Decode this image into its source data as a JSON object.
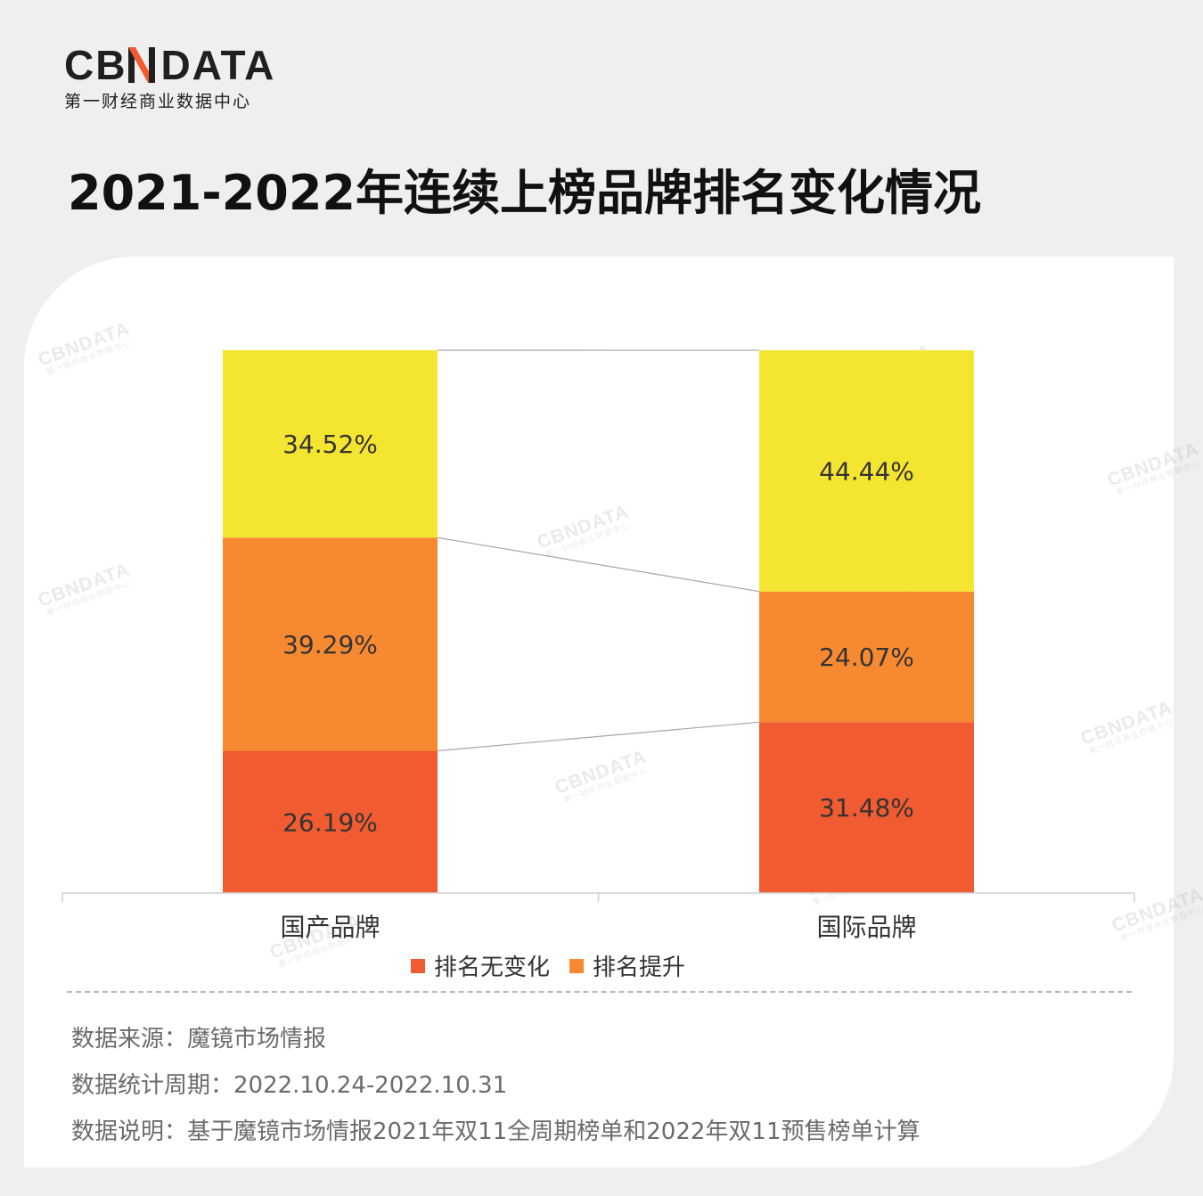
{
  "header": {
    "logo_left": "CB",
    "logo_right": "DATA",
    "logo_sub": "第一财经商业数据中心",
    "title": "2021-2022年连续上榜品牌排名变化情况"
  },
  "chart_data": {
    "type": "bar",
    "stacked": true,
    "categories": [
      "国产品牌",
      "国际品牌"
    ],
    "series": [
      {
        "name": "排名无变化",
        "values": [
          26.19,
          31.48
        ],
        "labels": [
          "26.19%",
          "31.48%"
        ],
        "color": "#f15b31"
      },
      {
        "name": "排名提升",
        "values": [
          39.29,
          24.07
        ],
        "labels": [
          "39.29%",
          "24.07%"
        ],
        "color": "#f78a31"
      },
      {
        "name": "",
        "values": [
          34.52,
          44.44
        ],
        "labels": [
          "34.52%",
          "44.44%"
        ],
        "color": "#f4e530"
      }
    ],
    "ylim": [
      0,
      100
    ],
    "grid": false,
    "legend": "bottom"
  },
  "legend_items": [
    {
      "label": "排名无变化",
      "color": "#f15b31"
    },
    {
      "label": "排名提升",
      "color": "#f78a31"
    }
  ],
  "notes": {
    "source": "数据来源：魔镜市场情报",
    "period": "数据统计周期：2022.10.24-2022.10.31",
    "explanation": "数据说明：基于魔镜市场情报2021年双11全周期榜单和2022年双11预售榜单计算"
  },
  "colors": {
    "accent": "#f15b31"
  }
}
